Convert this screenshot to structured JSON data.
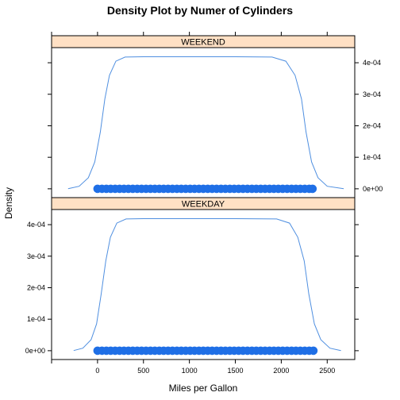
{
  "chart_data": {
    "type": "area",
    "title": "Density Plot by Numer of Cylinders",
    "xlabel": "Miles per Gallon",
    "ylabel": "Density",
    "xlim": [
      -500,
      2800
    ],
    "ylim": [
      -2.8e-05,
      0.000448
    ],
    "x_ticks": [
      0,
      500,
      1000,
      1500,
      2000,
      2500
    ],
    "x_tick_labels": [
      "0",
      "500",
      "1000",
      "1500",
      "2000",
      "2500"
    ],
    "y_ticks": [
      0,
      0.0001,
      0.0002,
      0.0003,
      0.0004
    ],
    "y_tick_labels": [
      "0e+00",
      "1e-04",
      "2e-04",
      "3e-04",
      "4e-04"
    ],
    "grid": false,
    "line_color": "#4f8fe0",
    "point_color": "#1f6fe6",
    "strip_color": "#ffe0c4",
    "panels": [
      {
        "strip": "WEEKEND",
        "curve_x": [
          -320,
          -200,
          -100,
          -30,
          30,
          80,
          130,
          200,
          300,
          500,
          1000,
          1500,
          1900,
          2050,
          2150,
          2220,
          2270,
          2330,
          2400,
          2500,
          2680
        ],
        "curve_y": [
          5e-07,
          8e-06,
          3.5e-05,
          8.5e-05,
          0.00018,
          0.000285,
          0.00036,
          0.000405,
          0.000418,
          0.000419,
          0.000419,
          0.000419,
          0.000418,
          0.000405,
          0.00036,
          0.000285,
          0.00018,
          8.5e-05,
          3.5e-05,
          8e-06,
          5e-07
        ],
        "rug_x": [
          0,
          48,
          96,
          144,
          192,
          240,
          288,
          336,
          384,
          432,
          480,
          528,
          576,
          624,
          672,
          720,
          768,
          816,
          864,
          912,
          960,
          1008,
          1056,
          1104,
          1152,
          1200,
          1248,
          1296,
          1344,
          1392,
          1440,
          1488,
          1536,
          1584,
          1632,
          1680,
          1728,
          1776,
          1824,
          1872,
          1920,
          1968,
          2016,
          2064,
          2112,
          2160,
          2208,
          2256,
          2304,
          2340
        ]
      },
      {
        "strip": "WEEKDAY",
        "curve_x": [
          -260,
          -160,
          -70,
          -10,
          40,
          90,
          140,
          210,
          310,
          500,
          1000,
          1500,
          1950,
          2090,
          2180,
          2250,
          2300,
          2360,
          2430,
          2530,
          2650
        ],
        "curve_y": [
          5e-07,
          8e-06,
          3.5e-05,
          8.5e-05,
          0.00018,
          0.000285,
          0.00036,
          0.000405,
          0.000418,
          0.000419,
          0.000419,
          0.000419,
          0.000418,
          0.000405,
          0.00036,
          0.000285,
          0.00018,
          8.5e-05,
          3.5e-05,
          8e-06,
          5e-07
        ],
        "rug_x": [
          0,
          48,
          96,
          144,
          192,
          240,
          288,
          336,
          384,
          432,
          480,
          528,
          576,
          624,
          672,
          720,
          768,
          816,
          864,
          912,
          960,
          1008,
          1056,
          1104,
          1152,
          1200,
          1248,
          1296,
          1344,
          1392,
          1440,
          1488,
          1536,
          1584,
          1632,
          1680,
          1728,
          1776,
          1824,
          1872,
          1920,
          1968,
          2016,
          2064,
          2112,
          2160,
          2208,
          2256,
          2304,
          2350
        ]
      }
    ]
  }
}
